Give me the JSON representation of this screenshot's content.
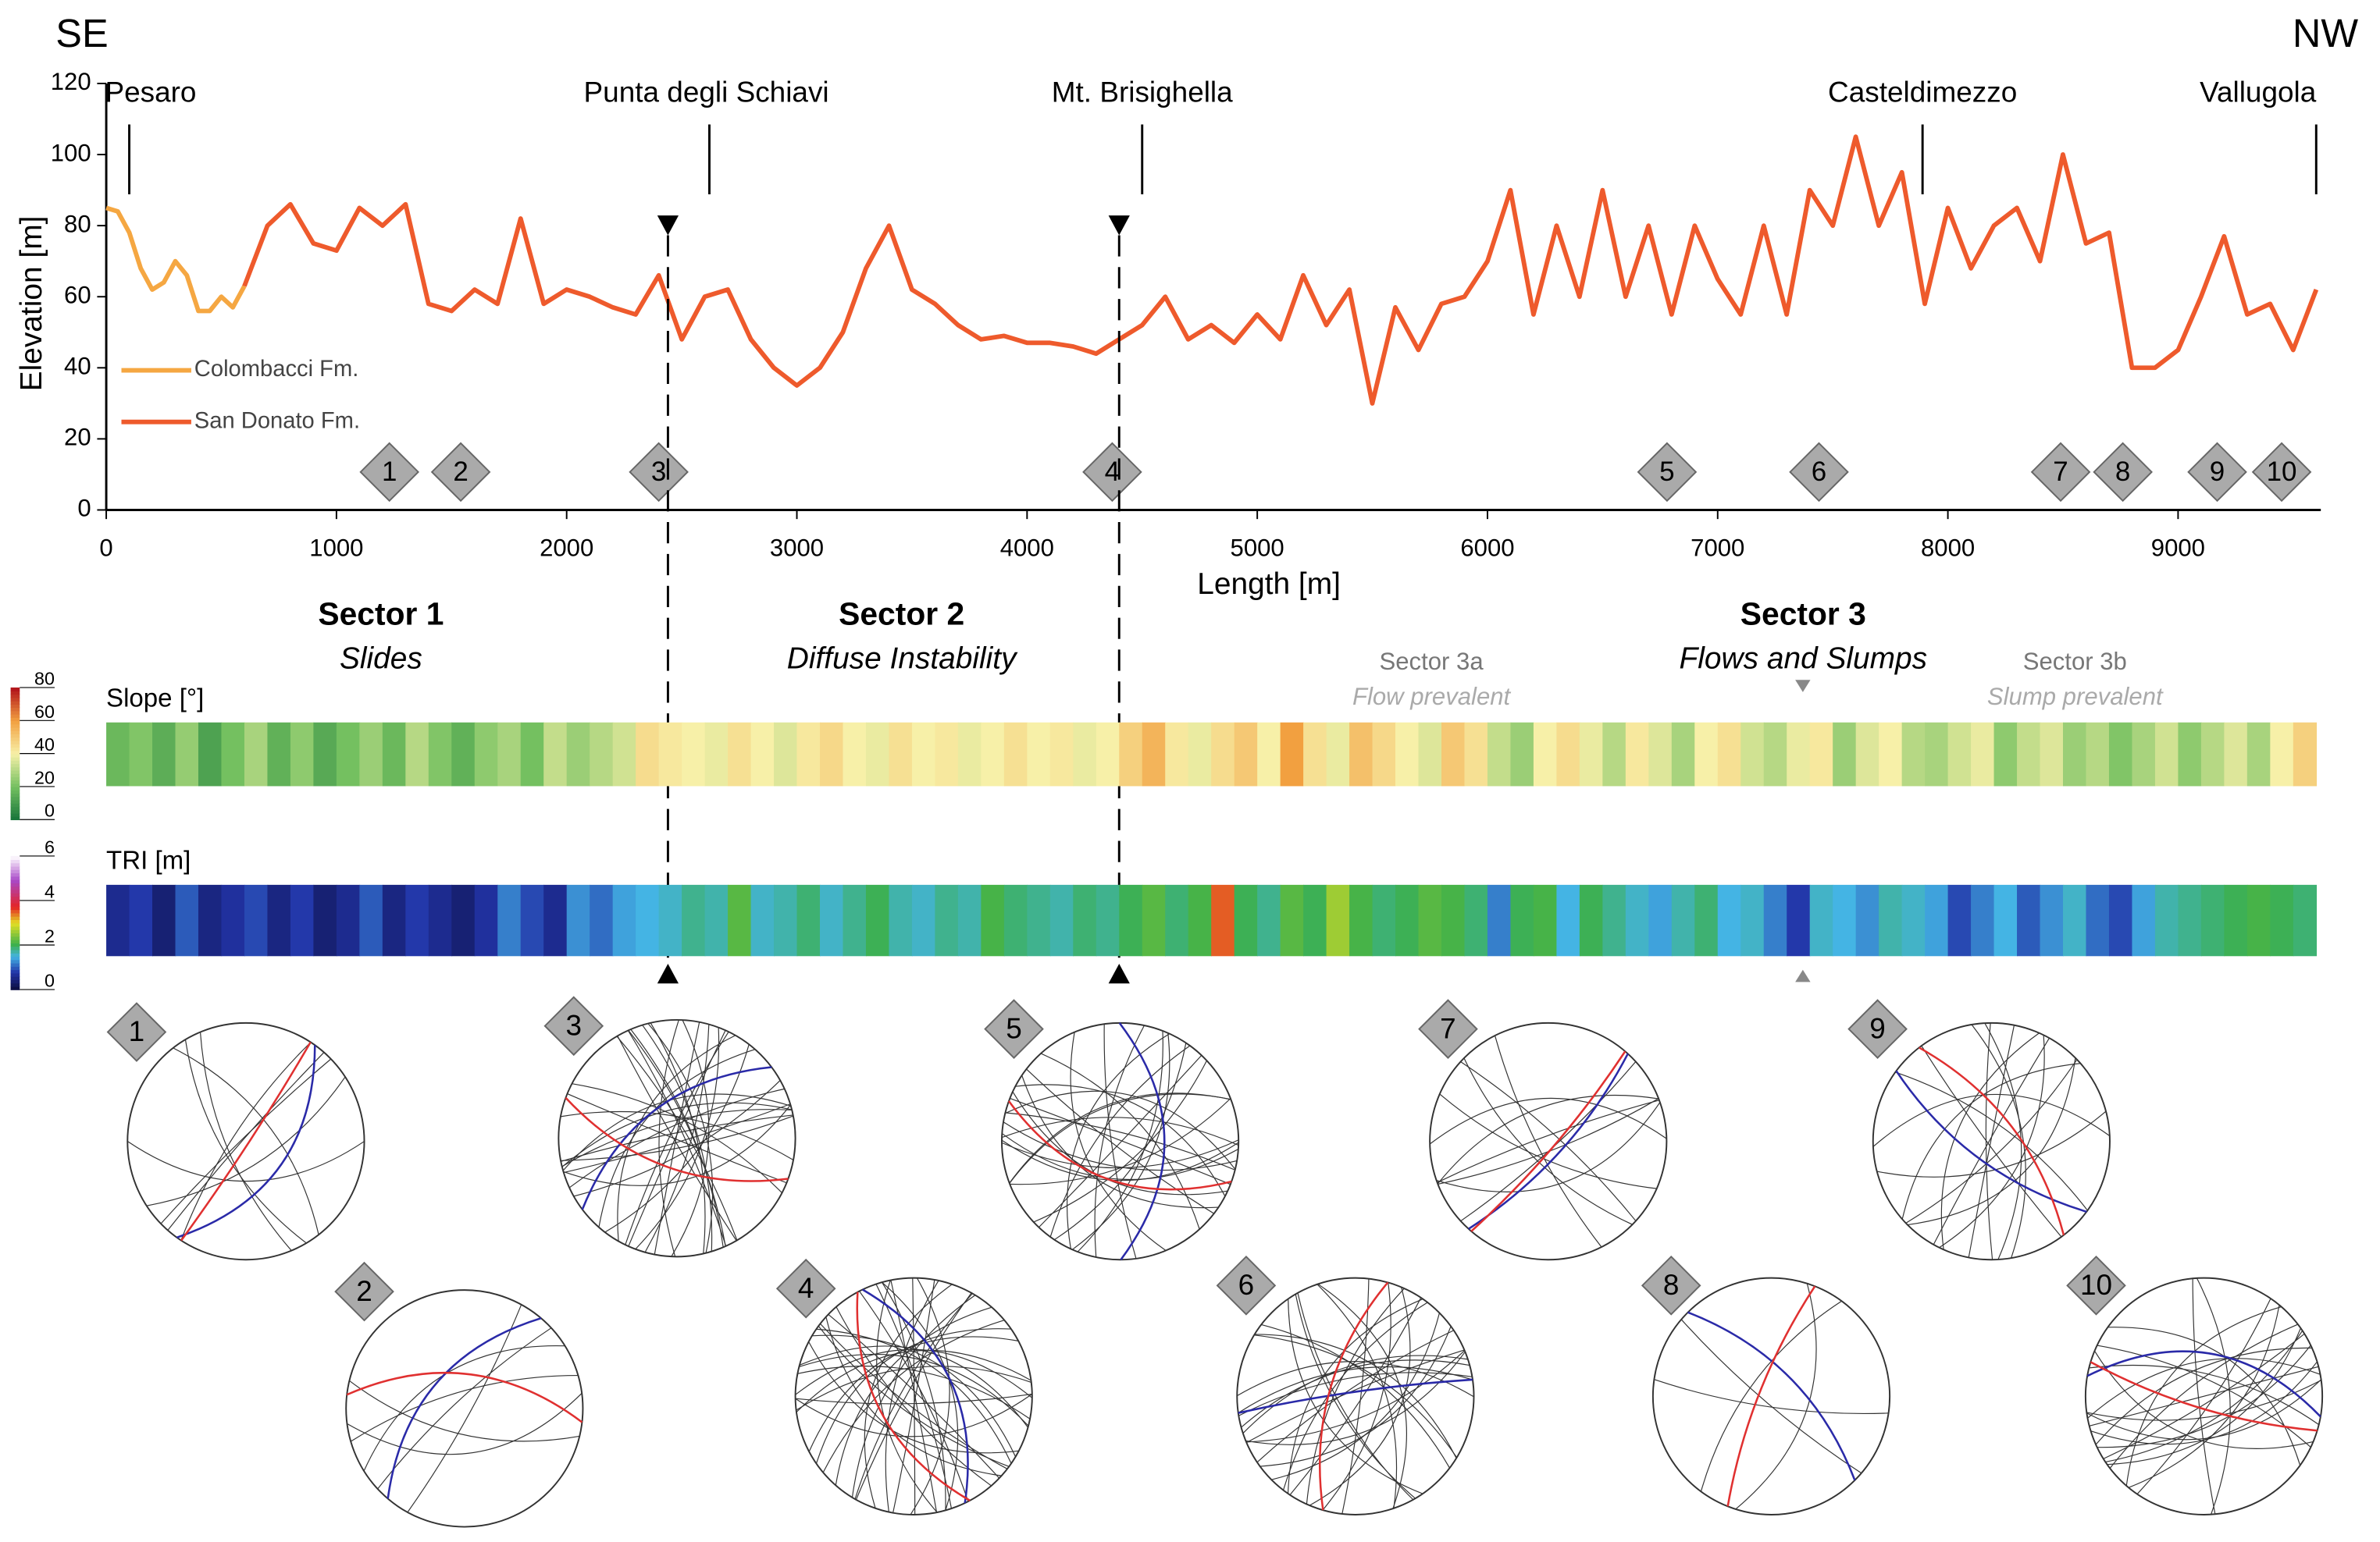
{
  "title_left": "SE",
  "title_right": "NW",
  "chart_data": {
    "type": "line",
    "xlabel": "Length [m]",
    "ylabel": "Elevation [m]",
    "xlim": [
      0,
      9620
    ],
    "ylim": [
      0,
      120
    ],
    "xticks": [
      0,
      1000,
      2000,
      3000,
      4000,
      5000,
      6000,
      7000,
      8000,
      9000
    ],
    "yticks": [
      0,
      20,
      40,
      60,
      80,
      100,
      120
    ],
    "series": [
      {
        "name": "Colombacci Fm.",
        "color": "#f5a742",
        "x": [
          0,
          50,
          100,
          150,
          200,
          250,
          300,
          350,
          400,
          450,
          500,
          550,
          600
        ],
        "values": [
          85,
          84,
          78,
          68,
          62,
          64,
          70,
          66,
          56,
          56,
          60,
          57,
          63
        ]
      },
      {
        "name": "San Donato Fm.",
        "color": "#ee5a2c",
        "x": [
          600,
          700,
          800,
          900,
          1000,
          1100,
          1200,
          1300,
          1400,
          1500,
          1600,
          1700,
          1800,
          1900,
          2000,
          2100,
          2200,
          2300,
          2400,
          2500,
          2600,
          2700,
          2800,
          2900,
          3000,
          3100,
          3200,
          3300,
          3400,
          3500,
          3600,
          3700,
          3800,
          3900,
          4000,
          4100,
          4200,
          4300,
          4400,
          4500,
          4600,
          4700,
          4800,
          4900,
          5000,
          5100,
          5200,
          5300,
          5400,
          5500,
          5600,
          5700,
          5800,
          5900,
          6000,
          6100,
          6200,
          6300,
          6400,
          6500,
          6600,
          6700,
          6800,
          6900,
          7000,
          7100,
          7200,
          7300,
          7400,
          7500,
          7600,
          7700,
          7800,
          7900,
          8000,
          8100,
          8200,
          8300,
          8400,
          8500,
          8600,
          8700,
          8800,
          8900,
          9000,
          9100,
          9200,
          9300,
          9400,
          9500,
          9600
        ],
        "values": [
          63,
          80,
          86,
          75,
          73,
          85,
          80,
          86,
          58,
          56,
          62,
          58,
          82,
          58,
          62,
          60,
          57,
          55,
          66,
          48,
          60,
          62,
          48,
          40,
          35,
          40,
          50,
          68,
          80,
          62,
          58,
          52,
          48,
          49,
          47,
          47,
          46,
          44,
          48,
          52,
          60,
          48,
          52,
          47,
          55,
          48,
          66,
          52,
          62,
          30,
          57,
          45,
          58,
          60,
          70,
          90,
          55,
          80,
          60,
          90,
          60,
          80,
          55,
          80,
          65,
          55,
          80,
          55,
          90,
          80,
          105,
          80,
          95,
          58,
          85,
          68,
          80,
          85,
          70,
          100,
          75,
          78,
          40,
          40,
          45,
          60,
          77,
          55,
          58,
          45,
          62
        ]
      }
    ],
    "locations": [
      {
        "name": "Pesaro",
        "x": 100
      },
      {
        "name": "Punta degli Schiavi",
        "x": 2620
      },
      {
        "name": "Mt. Brisighella",
        "x": 4500
      },
      {
        "name": "Casteldimezzo",
        "x": 7890
      },
      {
        "name": "Vallugola",
        "x": 9600
      }
    ],
    "sites": [
      {
        "label": "1",
        "x": 1230
      },
      {
        "label": "2",
        "x": 1540
      },
      {
        "label": "3",
        "x": 2400
      },
      {
        "label": "4",
        "x": 4370
      },
      {
        "label": "5",
        "x": 6780
      },
      {
        "label": "6",
        "x": 7440
      },
      {
        "label": "7",
        "x": 8490
      },
      {
        "label": "8",
        "x": 8760
      },
      {
        "label": "9",
        "x": 9170
      },
      {
        "label": "10",
        "x": 9450
      }
    ],
    "sector_boundaries": [
      2440,
      4400
    ],
    "subsector_boundary": 7370
  },
  "sectors": [
    {
      "name": "Sector 1",
      "subtitle": "Slides"
    },
    {
      "name": "Sector 2",
      "subtitle": "Diffuse Instability"
    },
    {
      "name": "Sector 3",
      "subtitle": "Flows and Slumps"
    }
  ],
  "subsectors": [
    {
      "name": "Sector 3a",
      "subtitle": "Flow prevalent"
    },
    {
      "name": "Sector 3b",
      "subtitle": "Slump prevalent"
    }
  ],
  "slope": {
    "label": "Slope [°]",
    "lim": [
      0,
      80
    ],
    "ticks": [
      0,
      20,
      40,
      60,
      80
    ],
    "xrange": [
      0,
      9600
    ],
    "values": [
      18,
      22,
      15,
      25,
      12,
      20,
      28,
      16,
      24,
      14,
      20,
      26,
      18,
      30,
      22,
      16,
      24,
      28,
      20,
      32,
      26,
      30,
      34,
      45,
      42,
      40,
      38,
      44,
      40,
      36,
      42,
      46,
      40,
      38,
      44,
      40,
      42,
      38,
      40,
      44,
      40,
      42,
      38,
      40,
      48,
      55,
      42,
      38,
      45,
      50,
      40,
      60,
      44,
      38,
      52,
      46,
      40,
      36,
      50,
      44,
      32,
      26,
      40,
      45,
      38,
      30,
      42,
      36,
      28,
      40,
      44,
      34,
      30,
      38,
      42,
      26,
      36,
      40,
      30,
      28,
      34,
      38,
      24,
      32,
      36,
      26,
      30,
      22,
      28,
      34,
      24,
      30,
      36,
      28,
      40,
      48
    ]
  },
  "tri": {
    "label": "TRI [m]",
    "lim": [
      0,
      6
    ],
    "ticks": [
      0,
      2,
      4,
      6
    ],
    "xrange": [
      0,
      9600
    ],
    "values": [
      0.6,
      0.8,
      0.4,
      1.0,
      0.5,
      0.7,
      0.9,
      0.5,
      0.8,
      0.4,
      0.6,
      1.0,
      0.5,
      0.8,
      0.6,
      0.4,
      0.7,
      1.2,
      0.9,
      0.6,
      1.3,
      1.1,
      1.4,
      1.5,
      1.6,
      1.8,
      1.7,
      2.2,
      1.6,
      1.7,
      1.9,
      1.6,
      1.8,
      2.0,
      1.7,
      1.6,
      1.8,
      1.7,
      2.1,
      1.9,
      1.8,
      1.7,
      1.9,
      1.8,
      2.0,
      2.2,
      1.9,
      2.1,
      3.5,
      2.0,
      1.8,
      2.2,
      2.0,
      2.6,
      2.1,
      1.9,
      2.0,
      2.2,
      2.1,
      1.9,
      1.2,
      2.0,
      2.1,
      1.5,
      2.0,
      1.8,
      1.6,
      1.4,
      1.7,
      1.9,
      1.5,
      1.6,
      1.2,
      0.8,
      1.6,
      1.5,
      1.3,
      1.7,
      1.6,
      1.4,
      0.9,
      1.2,
      1.5,
      1.0,
      1.3,
      1.6,
      1.1,
      0.9,
      1.4,
      1.7,
      1.8,
      1.9,
      2.0,
      2.1,
      2.0,
      1.9
    ]
  }
}
